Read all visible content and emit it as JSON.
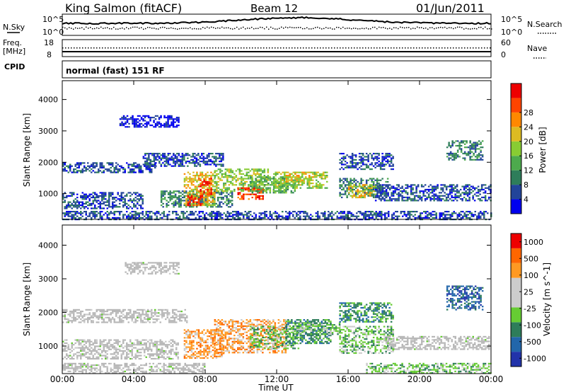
{
  "header": {
    "station": "King Salmon (fitACF)",
    "beam": "Beam 12",
    "date": "01/Jun/2011"
  },
  "noise_panel": {
    "left_label": "N.Sky",
    "right_label": "N.Search",
    "left_ticks": [
      "10^5",
      "10^0"
    ],
    "right_ticks": [
      "10^5",
      "10^0"
    ]
  },
  "freq_panel": {
    "left_label_line1": "Freq.",
    "left_label_line2": "[MHz]",
    "left_ticks": [
      "18",
      "8"
    ],
    "right_label": "Nave",
    "right_ticks": [
      "60",
      "0"
    ]
  },
  "cpid_panel": {
    "label": "CPID",
    "program": "normal (fast) 151 RF"
  },
  "axes": {
    "ylabel": "Slant Range [km]",
    "xlabel": "Time UT",
    "x_ticks": [
      "00:00",
      "04:00",
      "08:00",
      "12:00",
      "16:00",
      "20:00",
      "00:00"
    ],
    "y_ticks": [
      "1000",
      "2000",
      "3000",
      "4000"
    ]
  },
  "colors": {
    "power_scale": [
      "#0000ee",
      "#224499",
      "#2e7d5a",
      "#4daa4d",
      "#88cc33",
      "#ddbb22",
      "#ff8800",
      "#ff4400",
      "#ee0000"
    ],
    "velocity_scale": [
      "#2233aa",
      "#2266aa",
      "#2e7d5a",
      "#66cc33",
      "#cccccc",
      "#cccccc",
      "#ff9922",
      "#ff6600",
      "#ee0000"
    ],
    "ground_scatter": "#b8b8b8"
  },
  "chart_data": [
    {
      "type": "heatmap",
      "name": "power",
      "xlabel": "Time UT",
      "ylabel": "Slant Range [km]",
      "xlim": [
        0,
        24
      ],
      "ylim": [
        180,
        4600
      ],
      "colorbar": {
        "label": "Power [dB]",
        "ticks": [
          "4",
          "8",
          "12",
          "16",
          "20",
          "24",
          "28"
        ],
        "range": [
          0,
          30
        ]
      },
      "regions": [
        {
          "t0": 0.0,
          "t1": 5.2,
          "r0": 1700,
          "r1": 2000,
          "level": 1
        },
        {
          "t0": 3.2,
          "t1": 6.5,
          "r0": 3150,
          "r1": 3500,
          "level": 0
        },
        {
          "t0": 0.0,
          "t1": 4.5,
          "r0": 550,
          "r1": 1050,
          "level": 1
        },
        {
          "t0": 4.5,
          "t1": 9.0,
          "r0": 1900,
          "r1": 2300,
          "level": 1
        },
        {
          "t0": 5.5,
          "t1": 9.5,
          "r0": 600,
          "r1": 1100,
          "level": 2
        },
        {
          "t0": 6.8,
          "t1": 8.5,
          "r0": 650,
          "r1": 1700,
          "level": 5
        },
        {
          "t0": 7.0,
          "t1": 7.8,
          "r0": 650,
          "r1": 950,
          "level": 8
        },
        {
          "t0": 7.6,
          "t1": 8.3,
          "r0": 1000,
          "r1": 1500,
          "level": 7
        },
        {
          "t0": 8.5,
          "t1": 11.5,
          "r0": 1100,
          "r1": 1800,
          "level": 4
        },
        {
          "t0": 9.8,
          "t1": 11.2,
          "r0": 850,
          "r1": 1200,
          "level": 7
        },
        {
          "t0": 10.5,
          "t1": 13.0,
          "r0": 1050,
          "r1": 1550,
          "level": 3
        },
        {
          "t0": 11.8,
          "t1": 14.8,
          "r0": 1200,
          "r1": 1700,
          "level": 4
        },
        {
          "t0": 12.5,
          "t1": 14.0,
          "r0": 1400,
          "r1": 1700,
          "level": 5
        },
        {
          "t0": 15.5,
          "t1": 18.2,
          "r0": 900,
          "r1": 1500,
          "level": 2
        },
        {
          "t0": 16.0,
          "t1": 17.5,
          "r0": 900,
          "r1": 1300,
          "level": 5
        },
        {
          "t0": 15.5,
          "t1": 18.5,
          "r0": 1800,
          "r1": 2300,
          "level": 1
        },
        {
          "t0": 17.5,
          "t1": 24.0,
          "r0": 800,
          "r1": 1300,
          "level": 1
        },
        {
          "t0": 21.5,
          "t1": 23.5,
          "r0": 2100,
          "r1": 2700,
          "level": 2
        },
        {
          "t0": 0.0,
          "t1": 24.0,
          "r0": 200,
          "r1": 450,
          "level": 1
        }
      ]
    },
    {
      "type": "heatmap",
      "name": "velocity",
      "xlabel": "Time UT",
      "ylabel": "Slant Range [km]",
      "xlim": [
        0,
        24
      ],
      "ylim": [
        180,
        4600
      ],
      "colorbar": {
        "label": "Velocity [m s^-1]",
        "ticks": [
          "1000",
          "500",
          "100",
          "25",
          "-25",
          "-100",
          "-500",
          "-1000"
        ],
        "range": [
          -1200,
          1200
        ]
      },
      "regions": [
        {
          "t0": 0.0,
          "t1": 7.0,
          "r0": 1700,
          "r1": 2100,
          "level": 4
        },
        {
          "t0": 0.0,
          "t1": 6.5,
          "r0": 600,
          "r1": 1200,
          "level": 4
        },
        {
          "t0": 3.5,
          "t1": 6.5,
          "r0": 3150,
          "r1": 3500,
          "level": 4
        },
        {
          "t0": 6.8,
          "t1": 9.0,
          "r0": 650,
          "r1": 1500,
          "level": 6
        },
        {
          "t0": 8.5,
          "t1": 12.5,
          "r0": 800,
          "r1": 1800,
          "level": 6
        },
        {
          "t0": 10.5,
          "t1": 13.2,
          "r0": 950,
          "r1": 1600,
          "level": 3
        },
        {
          "t0": 12.5,
          "t1": 15.0,
          "r0": 1100,
          "r1": 1800,
          "level": 2
        },
        {
          "t0": 13.0,
          "t1": 15.5,
          "r0": 1350,
          "r1": 1700,
          "level": 3
        },
        {
          "t0": 15.5,
          "t1": 18.5,
          "r0": 800,
          "r1": 1600,
          "level": 3
        },
        {
          "t0": 15.5,
          "t1": 18.5,
          "r0": 1700,
          "r1": 2300,
          "level": 2
        },
        {
          "t0": 18.0,
          "t1": 24.0,
          "r0": 900,
          "r1": 1300,
          "level": 4
        },
        {
          "t0": 21.5,
          "t1": 23.5,
          "r0": 2100,
          "r1": 2800,
          "level": 1
        },
        {
          "t0": 17.0,
          "t1": 24.0,
          "r0": 200,
          "r1": 500,
          "level": 3
        },
        {
          "t0": 0.0,
          "t1": 8.0,
          "r0": 200,
          "r1": 500,
          "level": 4
        }
      ]
    }
  ]
}
